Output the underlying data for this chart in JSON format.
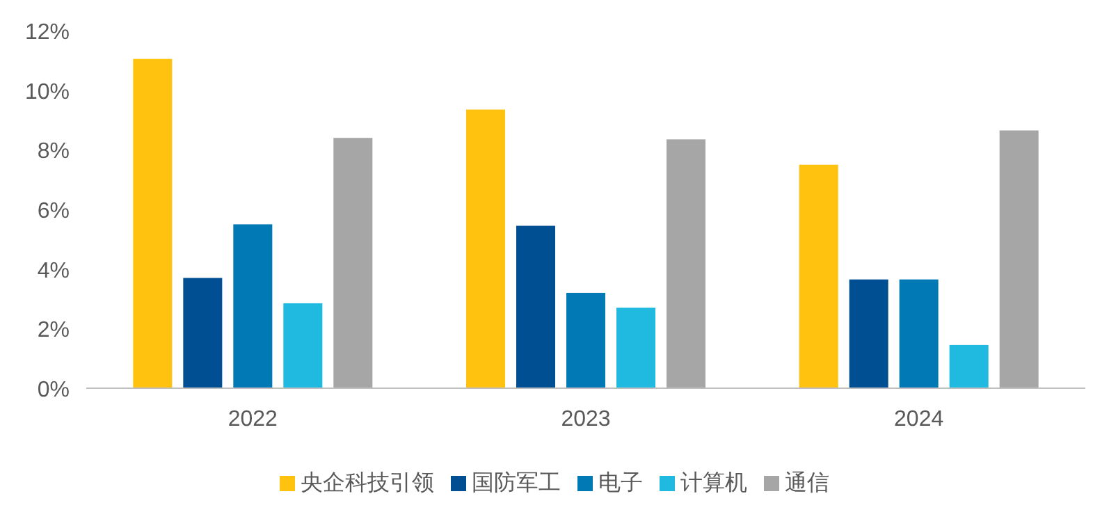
{
  "chart_data": {
    "type": "bar",
    "categories": [
      "2022",
      "2023",
      "2024"
    ],
    "series": [
      {
        "name": "央企科技引领",
        "color": "#ffc20e",
        "values": [
          11.05,
          9.35,
          7.5
        ]
      },
      {
        "name": "国防军工",
        "color": "#004f93",
        "values": [
          3.7,
          5.45,
          3.65
        ]
      },
      {
        "name": "电子",
        "color": "#0079b5",
        "values": [
          5.5,
          3.2,
          3.65
        ]
      },
      {
        "name": "计算机",
        "color": "#20b9e0",
        "values": [
          2.85,
          2.7,
          1.45
        ]
      },
      {
        "name": "通信",
        "color": "#a6a6a6",
        "values": [
          8.4,
          8.35,
          8.65
        ]
      }
    ],
    "ylim": [
      0,
      12
    ],
    "yticks": [
      {
        "value": 0,
        "label": "0%"
      },
      {
        "value": 2,
        "label": "2%"
      },
      {
        "value": 4,
        "label": "4%"
      },
      {
        "value": 6,
        "label": "6%"
      },
      {
        "value": 8,
        "label": "8%"
      },
      {
        "value": 10,
        "label": "10%"
      },
      {
        "value": 12,
        "label": "12%"
      }
    ],
    "legend": "bottom",
    "grid": false
  }
}
